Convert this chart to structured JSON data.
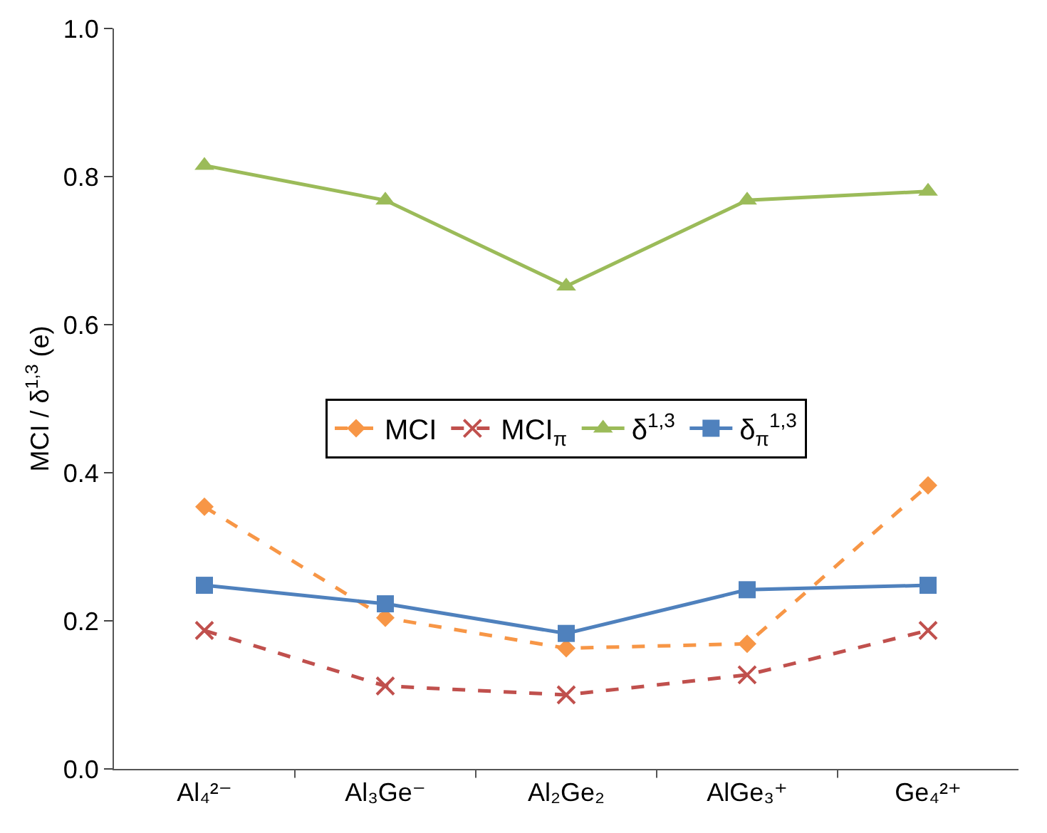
{
  "chart_data": {
    "type": "line",
    "ylabel": "MCI / δ$^{1,3}$ (e)",
    "categories": [
      "Al₄²⁻",
      "Al₃Ge⁻",
      "Al₂Ge₂",
      "AlGe₃⁺",
      "Ge₄²⁺"
    ],
    "series": [
      {
        "name": "MCI",
        "color": "#f79646",
        "marker": "diamond",
        "line_style": "dashed",
        "values": [
          0.354,
          0.204,
          0.163,
          0.169,
          0.383
        ]
      },
      {
        "name": "MCI$_{π}$",
        "color": "#c0504d",
        "marker": "cross",
        "line_style": "dashed",
        "values": [
          0.187,
          0.112,
          0.1,
          0.127,
          0.187
        ]
      },
      {
        "name": "δ$^{1,3}$",
        "color": "#9bbb59",
        "marker": "triangle",
        "line_style": "solid",
        "values": [
          0.815,
          0.768,
          0.652,
          0.768,
          0.78
        ]
      },
      {
        "name": "δ$_{π}$$^{1,3}$",
        "color": "#4f81bd",
        "marker": "square",
        "line_style": "solid",
        "values": [
          0.248,
          0.223,
          0.183,
          0.242,
          0.248
        ]
      }
    ],
    "ylim": [
      0,
      1
    ],
    "yticks": [
      {
        "value": 0,
        "label": "0.0"
      },
      {
        "value": 0.2,
        "label": "0.2"
      },
      {
        "value": 0.4,
        "label": "0.4"
      },
      {
        "value": 0.6,
        "label": "0.6"
      },
      {
        "value": 0.8,
        "label": "0.8"
      },
      {
        "value": 1,
        "label": "1.0"
      }
    ],
    "grid": false,
    "legend": "center"
  }
}
